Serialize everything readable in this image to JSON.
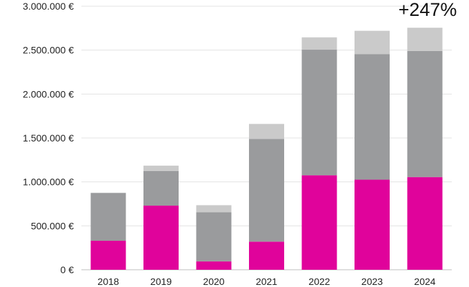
{
  "chart_data": {
    "type": "bar",
    "stacked": true,
    "categories": [
      "2018",
      "2019",
      "2020",
      "2021",
      "2022",
      "2023",
      "2024"
    ],
    "series": [
      {
        "color": "#e0039b",
        "values": [
          330000,
          730000,
          95000,
          320000,
          1075000,
          1025000,
          1055000
        ]
      },
      {
        "color": "#9a9b9d",
        "values": [
          545000,
          395000,
          560000,
          1170000,
          1430000,
          1430000,
          1435000
        ]
      },
      {
        "color": "#cacaca",
        "values": [
          0,
          60000,
          80000,
          170000,
          140000,
          265000,
          265000
        ]
      }
    ],
    "ylim": [
      0,
      3000000
    ],
    "yticks": [
      0,
      500000,
      1000000,
      1500000,
      2000000,
      2500000,
      3000000
    ],
    "ytick_labels": [
      "0 €",
      "500.000 €",
      "1.000.000 €",
      "1.500.000 €",
      "2.000.000 €",
      "2.500.000 €",
      "3.000.000 €"
    ],
    "grid": true,
    "annotation": {
      "text": "+247%",
      "category": "2024"
    }
  }
}
